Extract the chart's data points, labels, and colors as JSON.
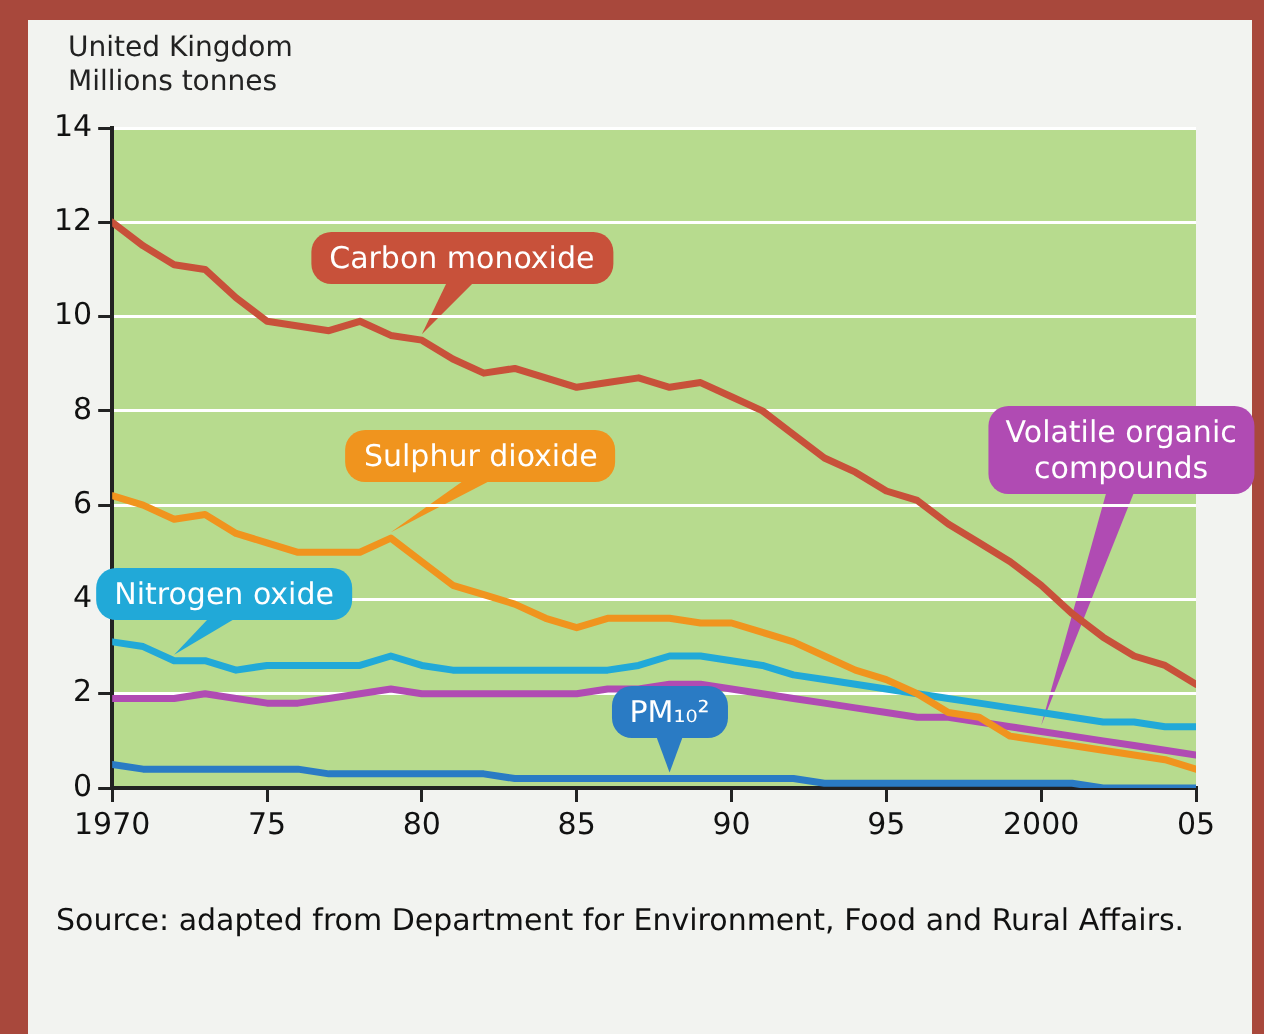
{
  "chart_data": {
    "type": "line",
    "title": "United Kingdom",
    "ylabel": "Millions tonnes",
    "x": [
      1970,
      1971,
      1972,
      1973,
      1974,
      1975,
      1976,
      1977,
      1978,
      1979,
      1980,
      1981,
      1982,
      1983,
      1984,
      1985,
      1986,
      1987,
      1988,
      1989,
      1990,
      1991,
      1992,
      1993,
      1994,
      1995,
      1996,
      1997,
      1998,
      1999,
      2000,
      2001,
      2002,
      2003,
      2004,
      2005
    ],
    "series": [
      {
        "name": "Carbon monoxide",
        "color": "#c8513a",
        "values": [
          12.0,
          11.5,
          11.1,
          11.0,
          10.4,
          9.9,
          9.8,
          9.7,
          9.9,
          9.6,
          9.5,
          9.1,
          8.8,
          8.9,
          8.7,
          8.5,
          8.6,
          8.7,
          8.5,
          8.6,
          8.3,
          8.0,
          7.5,
          7.0,
          6.7,
          6.3,
          6.1,
          5.6,
          5.2,
          4.8,
          4.3,
          3.7,
          3.2,
          2.8,
          2.6,
          2.2
        ]
      },
      {
        "name": "Sulphur dioxide",
        "color": "#f0941e",
        "values": [
          6.2,
          6.0,
          5.7,
          5.8,
          5.4,
          5.2,
          5.0,
          5.0,
          5.0,
          5.3,
          4.8,
          4.3,
          4.1,
          3.9,
          3.6,
          3.4,
          3.6,
          3.6,
          3.6,
          3.5,
          3.5,
          3.3,
          3.1,
          2.8,
          2.5,
          2.3,
          2.0,
          1.6,
          1.5,
          1.1,
          1.0,
          0.9,
          0.8,
          0.7,
          0.6,
          0.4
        ]
      },
      {
        "name": "Nitrogen oxide",
        "color": "#21a9d8",
        "values": [
          3.1,
          3.0,
          2.7,
          2.7,
          2.5,
          2.6,
          2.6,
          2.6,
          2.6,
          2.8,
          2.6,
          2.5,
          2.5,
          2.5,
          2.5,
          2.5,
          2.5,
          2.6,
          2.8,
          2.8,
          2.7,
          2.6,
          2.4,
          2.3,
          2.2,
          2.1,
          2.0,
          1.9,
          1.8,
          1.7,
          1.6,
          1.5,
          1.4,
          1.4,
          1.3,
          1.3
        ]
      },
      {
        "name": "Volatile organic compounds",
        "color": "#b04bb3",
        "values": [
          1.9,
          1.9,
          1.9,
          2.0,
          1.9,
          1.8,
          1.8,
          1.9,
          2.0,
          2.1,
          2.0,
          2.0,
          2.0,
          2.0,
          2.0,
          2.0,
          2.1,
          2.1,
          2.2,
          2.2,
          2.1,
          2.0,
          1.9,
          1.8,
          1.7,
          1.6,
          1.5,
          1.5,
          1.4,
          1.3,
          1.2,
          1.1,
          1.0,
          0.9,
          0.8,
          0.7
        ]
      },
      {
        "name": "PM₁₀²",
        "color": "#2a7bc4",
        "values": [
          0.5,
          0.4,
          0.4,
          0.4,
          0.4,
          0.4,
          0.4,
          0.3,
          0.3,
          0.3,
          0.3,
          0.3,
          0.3,
          0.2,
          0.2,
          0.2,
          0.2,
          0.2,
          0.2,
          0.2,
          0.2,
          0.2,
          0.2,
          0.1,
          0.1,
          0.1,
          0.1,
          0.1,
          0.1,
          0.1,
          0.1,
          0.1,
          0.0,
          0.0,
          0.0,
          0.0
        ]
      }
    ],
    "xlim": [
      1970,
      2005
    ],
    "xticks": [
      1970,
      {
        "value": 1975,
        "label": "75"
      },
      {
        "value": 1980,
        "label": "80"
      },
      {
        "value": 1985,
        "label": "85"
      },
      {
        "value": 1990,
        "label": "90"
      },
      {
        "value": 1995,
        "label": "95"
      },
      2000,
      {
        "value": 2005,
        "label": "05"
      }
    ],
    "ylim": [
      0,
      14
    ],
    "yticks": [
      0,
      2,
      4,
      6,
      8,
      10,
      12,
      14
    ],
    "grid": "y",
    "legend": false,
    "annotations": [
      "Source: adapted from Department for Environment, Food and Rural Affairs."
    ]
  }
}
